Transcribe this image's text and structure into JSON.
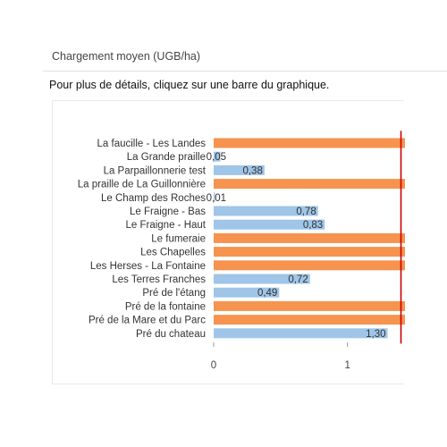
{
  "panel": {
    "title": "Chargement moyen (UGB/ha)",
    "instruction": "Pour plus de détails, cliquez sur une barre du graphique."
  },
  "colors": {
    "normal_bar": "#9fc5e8",
    "over_bar": "#f6934f",
    "threshold_line": "#cc0000",
    "axis_line": "#999999"
  },
  "chart_data": {
    "type": "bar",
    "orientation": "horizontal",
    "categories": [
      "La faucille - Les Landes",
      "La Grande praille",
      "La Parpaillonnerie test",
      "La praille de La Guillonnière",
      "Le Champ des Roches",
      "Le Fraigne - Bas",
      "Le Fraigne - Haut",
      "Le fumeraie",
      "Les Chapelles",
      "Les Herses - La Fontaine",
      "Les Terres Franches",
      "Pré de l'étang",
      "Pré de la fontaine",
      "Pré de la Mare et du Parc",
      "Pré du chateau"
    ],
    "values": [
      null,
      0.05,
      0.38,
      null,
      0.01,
      0.78,
      0.83,
      null,
      null,
      null,
      0.72,
      0.49,
      null,
      null,
      1.3
    ],
    "value_labels": [
      "",
      "0,05",
      "0,38",
      "",
      "0,01",
      "0,78",
      "0,83",
      "",
      "",
      "",
      "0,72",
      "0,49",
      "",
      "",
      "1,30"
    ],
    "exceeds_visible_range": [
      true,
      false,
      false,
      true,
      false,
      false,
      false,
      true,
      true,
      true,
      false,
      false,
      true,
      true,
      false
    ],
    "threshold": 1.4,
    "xlim": [
      0,
      1.43
    ],
    "xticks": [
      0,
      1
    ],
    "xtick_labels": [
      "0",
      "1"
    ],
    "grid": false,
    "title": "",
    "xlabel": "",
    "ylabel": ""
  }
}
